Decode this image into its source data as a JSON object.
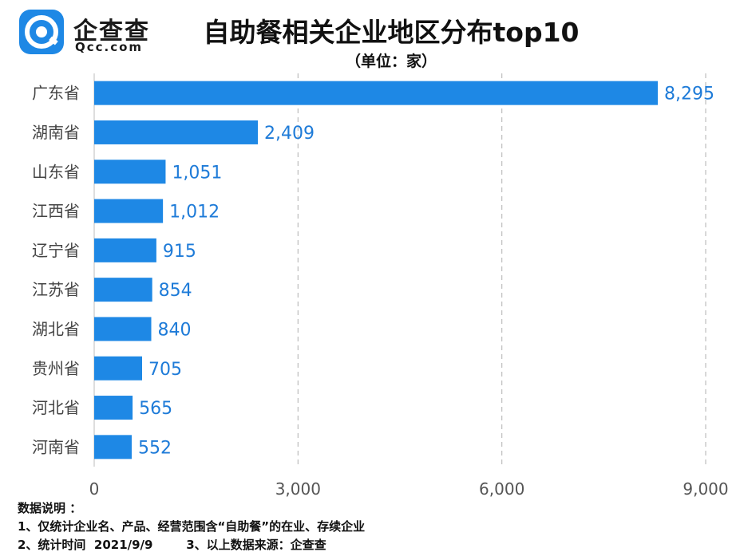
{
  "header": {
    "logo_name": "企查查",
    "logo_domain": "Qcc.com",
    "title": "自助餐相关企业地区分布top10",
    "unit": "（单位：家）"
  },
  "chart_data": {
    "type": "bar",
    "orientation": "horizontal",
    "categories": [
      "广东省",
      "湖南省",
      "山东省",
      "江西省",
      "辽宁省",
      "江苏省",
      "湖北省",
      "贵州省",
      "河北省",
      "河南省"
    ],
    "values": [
      8295,
      2409,
      1051,
      1012,
      915,
      854,
      840,
      705,
      565,
      552
    ],
    "value_labels": [
      "8,295",
      "2,409",
      "1,051",
      "1,012",
      "915",
      "854",
      "840",
      "705",
      "565",
      "552"
    ],
    "x_ticks": [
      0,
      3000,
      6000,
      9000
    ],
    "x_tick_labels": [
      "0",
      "3,000",
      "6,000",
      "9,000"
    ],
    "xlim": [
      0,
      9000
    ],
    "grid": "vertical-dashed",
    "bar_color": "#1e88e5",
    "title": "自助餐相关企业地区分布top10",
    "xlabel": "",
    "ylabel": ""
  },
  "notes": {
    "heading": "数据说明 ：",
    "line1": "1、仅统计企业名、产品、经营范围含“自助餐”的在业、存续企业",
    "line2": "2、统计时间  2021/9/9        3、以上数据来源：企查查"
  }
}
